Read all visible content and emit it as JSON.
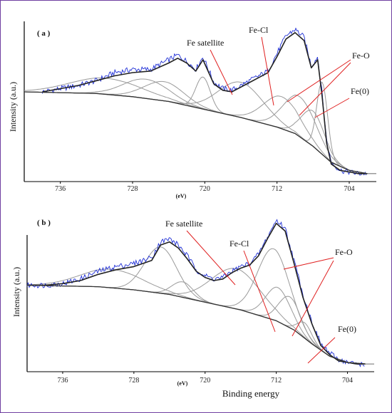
{
  "chart_data": [
    {
      "type": "line",
      "panel_label": "( a )",
      "ylabel": "Intensity (a.u.)",
      "xlabel": "",
      "x_unit": "(eV)",
      "xlim": [
        740,
        701
      ],
      "xticks": [
        "736",
        "728",
        "720",
        "712",
        "704"
      ],
      "series": [
        {
          "role": "raw",
          "color": "#1f2fd6",
          "x": [
            738,
            736,
            734,
            732,
            730,
            728,
            726,
            724,
            723,
            722,
            721,
            720.2,
            719,
            718,
            717,
            716,
            715,
            714,
            713,
            712,
            711,
            710,
            709,
            708.2,
            707.5,
            707,
            706.5,
            706,
            705,
            704,
            703,
            702
          ],
          "y": [
            0.56,
            0.58,
            0.6,
            0.63,
            0.68,
            0.7,
            0.7,
            0.76,
            0.79,
            0.75,
            0.7,
            0.78,
            0.62,
            0.58,
            0.57,
            0.6,
            0.63,
            0.66,
            0.69,
            0.8,
            0.91,
            0.95,
            0.9,
            0.72,
            0.78,
            0.55,
            0.25,
            0.12,
            0.07,
            0.06,
            0.05,
            0.05
          ]
        },
        {
          "role": "envelope",
          "color": "#222222",
          "x": [
            738,
            736,
            734,
            732,
            730,
            728,
            726,
            724,
            723,
            722,
            721,
            720.2,
            719,
            718,
            717,
            716,
            715,
            714,
            713,
            712,
            711,
            710,
            709,
            708.2,
            707.5,
            707,
            706.5,
            706,
            705,
            704,
            703,
            702
          ],
          "y": [
            0.56,
            0.58,
            0.6,
            0.63,
            0.66,
            0.68,
            0.69,
            0.74,
            0.77,
            0.74,
            0.69,
            0.76,
            0.61,
            0.57,
            0.56,
            0.59,
            0.62,
            0.65,
            0.68,
            0.78,
            0.89,
            0.93,
            0.88,
            0.71,
            0.76,
            0.53,
            0.24,
            0.11,
            0.07,
            0.06,
            0.05,
            0.05
          ]
        },
        {
          "role": "baseline",
          "color": "#333333",
          "x": [
            740,
            736,
            732,
            728,
            724,
            720,
            716,
            712,
            710,
            708,
            706,
            704,
            702
          ],
          "y": [
            0.56,
            0.555,
            0.55,
            0.53,
            0.5,
            0.45,
            0.4,
            0.34,
            0.3,
            0.22,
            0.12,
            0.07,
            0.05
          ]
        }
      ],
      "components": [
        {
          "name": "",
          "center": 731,
          "height": 0.1,
          "width": 4.0
        },
        {
          "name": "",
          "center": 726.5,
          "height": 0.12,
          "width": 2.5
        },
        {
          "name": "",
          "center": 724.5,
          "height": 0.12,
          "width": 2.2
        },
        {
          "name": "",
          "center": 720.2,
          "height": 0.2,
          "width": 0.8
        },
        {
          "name": "Fe satellite",
          "center": 716,
          "height": 0.22,
          "width": 2.5
        },
        {
          "name": "Fe-Cl",
          "center": 711.5,
          "height": 0.2,
          "width": 2.0
        },
        {
          "name": "Fe-O",
          "center": 709.5,
          "height": 0.25,
          "width": 1.8
        },
        {
          "name": "Fe-O",
          "center": 708.0,
          "height": 0.22,
          "width": 1.3
        },
        {
          "name": "Fe(0)",
          "center": 707.0,
          "height": 0.45,
          "width": 0.6
        }
      ],
      "annotations": [
        "Fe satellite",
        "Fe-Cl",
        "Fe-O",
        "Fe(0)"
      ]
    },
    {
      "type": "line",
      "panel_label": "( b )",
      "ylabel": "Intensity (a.u.)",
      "xlabel": "Binding energy",
      "x_unit": "(eV)",
      "xlim": [
        740,
        701
      ],
      "xticks": [
        "736",
        "728",
        "720",
        "712",
        "704"
      ],
      "series": [
        {
          "role": "raw",
          "color": "#1f2fd6",
          "x": [
            740,
            738,
            736,
            734,
            732,
            730,
            728,
            726,
            725,
            724,
            723,
            722,
            721,
            720,
            719,
            718,
            717,
            716,
            715,
            714,
            713,
            712,
            711,
            710,
            709,
            708,
            707,
            706,
            705,
            704,
            703,
            702
          ],
          "y": [
            0.56,
            0.56,
            0.57,
            0.6,
            0.65,
            0.68,
            0.7,
            0.74,
            0.84,
            0.86,
            0.82,
            0.75,
            0.66,
            0.62,
            0.6,
            0.61,
            0.65,
            0.68,
            0.7,
            0.76,
            0.87,
            0.98,
            0.93,
            0.72,
            0.5,
            0.32,
            0.18,
            0.12,
            0.08,
            0.06,
            0.05,
            0.05
          ]
        },
        {
          "role": "envelope",
          "color": "#222222",
          "x": [
            740,
            738,
            736,
            734,
            732,
            730,
            728,
            726,
            725,
            724,
            723,
            722,
            721,
            720,
            719,
            718,
            717,
            716,
            715,
            714,
            713,
            712,
            711,
            710,
            709,
            708,
            707,
            706,
            705,
            704,
            703,
            702
          ],
          "y": [
            0.56,
            0.56,
            0.57,
            0.59,
            0.63,
            0.66,
            0.68,
            0.72,
            0.82,
            0.84,
            0.8,
            0.73,
            0.65,
            0.61,
            0.59,
            0.6,
            0.64,
            0.67,
            0.69,
            0.75,
            0.86,
            0.96,
            0.91,
            0.7,
            0.48,
            0.31,
            0.17,
            0.11,
            0.07,
            0.06,
            0.05,
            0.05
          ]
        },
        {
          "role": "baseline",
          "color": "#333333",
          "x": [
            740,
            736,
            732,
            728,
            724,
            720,
            716,
            712,
            710,
            708,
            706,
            704,
            702
          ],
          "y": [
            0.56,
            0.555,
            0.55,
            0.53,
            0.5,
            0.45,
            0.4,
            0.33,
            0.27,
            0.18,
            0.1,
            0.06,
            0.05
          ]
        }
      ],
      "components": [
        {
          "name": "",
          "center": 730.5,
          "height": 0.12,
          "width": 3.5
        },
        {
          "name": "",
          "center": 725.0,
          "height": 0.3,
          "width": 1.8
        },
        {
          "name": "",
          "center": 722.5,
          "height": 0.1,
          "width": 1.2
        },
        {
          "name": "Fe satellite",
          "center": 716.5,
          "height": 0.26,
          "width": 2.8
        },
        {
          "name": "Fe-Cl",
          "center": 711.8,
          "height": 0.22,
          "width": 1.4
        },
        {
          "name": "Fe-O",
          "center": 712.3,
          "height": 0.46,
          "width": 1.8
        },
        {
          "name": "Fe-O",
          "center": 710.5,
          "height": 0.2,
          "width": 1.2
        },
        {
          "name": "Fe(0)",
          "center": 708.8,
          "height": 0.1,
          "width": 0.8
        }
      ],
      "annotations": [
        "Fe satellite",
        "Fe-Cl",
        "Fe-O",
        "Fe(0)"
      ]
    }
  ]
}
